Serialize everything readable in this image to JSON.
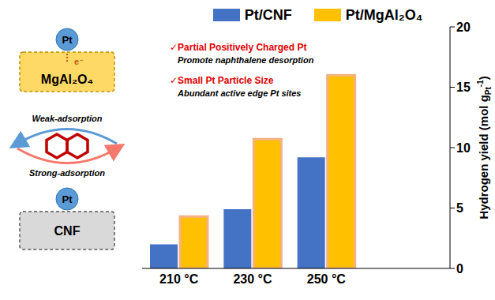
{
  "chart_data": {
    "type": "bar",
    "categories": [
      "210 °C",
      "230 °C",
      "250 °C"
    ],
    "series": [
      {
        "name": "Pt/CNF",
        "color": "#4472c4",
        "values": [
          2.0,
          4.9,
          9.2
        ]
      },
      {
        "name": "Pt/MgAl₂O₄",
        "color": "#ffc000",
        "values": [
          4.3,
          10.7,
          16.0
        ]
      }
    ],
    "ylabel": {
      "text": "Hydrogen yield (mol g",
      "subscript": "Pt",
      "superscript": "-1",
      "suffix": ")"
    },
    "ylim": [
      0,
      20
    ],
    "yticks": [
      0,
      5,
      10,
      15,
      20
    ],
    "grid": false,
    "legend": "top",
    "annotations": [
      {
        "title": "✓Partial Positively Charged Pt",
        "detail": "Promote naphthalene desorption"
      },
      {
        "title": "✓Small Pt Particle Size",
        "detail": "Abundant active edge Pt sites"
      }
    ]
  },
  "diagram": {
    "top": {
      "metal": "Pt",
      "support": "MgAl₂O₄",
      "electron": "e⁻"
    },
    "bottom": {
      "metal": "Pt",
      "support": "CNF"
    },
    "arrows": [
      "Weak-adsorption",
      "Strong-adsorption"
    ]
  }
}
